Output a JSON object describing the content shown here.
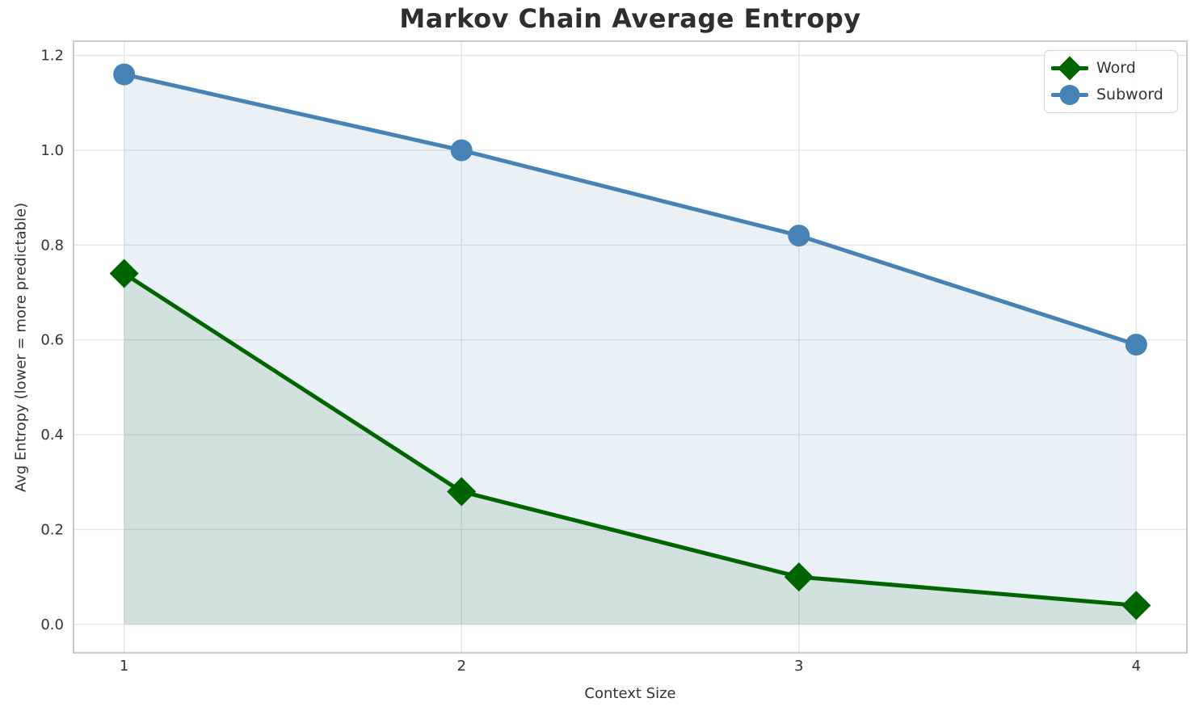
{
  "chart_data": {
    "type": "line",
    "title": "Markov Chain Average Entropy",
    "xlabel": "Context Size",
    "ylabel": "Avg Entropy (lower = more predictable)",
    "x": [
      1,
      2,
      3,
      4
    ],
    "series": [
      {
        "name": "Word",
        "values": [
          0.74,
          0.28,
          0.1,
          0.04
        ],
        "color": "#006400",
        "marker": "diamond",
        "fill_opacity": 0.1
      },
      {
        "name": "Subword",
        "values": [
          1.16,
          1.0,
          0.82,
          0.59
        ],
        "color": "#4682b4",
        "marker": "circle",
        "fill_opacity": 0.12
      }
    ],
    "x_ticks": [
      "1",
      "2",
      "3",
      "4"
    ],
    "y_ticks": [
      "0.0",
      "0.2",
      "0.4",
      "0.6",
      "0.8",
      "1.0",
      "1.2"
    ],
    "xlim": [
      0.85,
      4.15
    ],
    "ylim": [
      -0.06,
      1.23
    ],
    "grid": true,
    "area_fill_baseline": 0,
    "legend_position": "upper right",
    "colors": {
      "grid": "#e5e5e5",
      "spine": "#cccccc",
      "text": "#333333",
      "title": "#2e2e2e",
      "background": "#ffffff"
    }
  }
}
